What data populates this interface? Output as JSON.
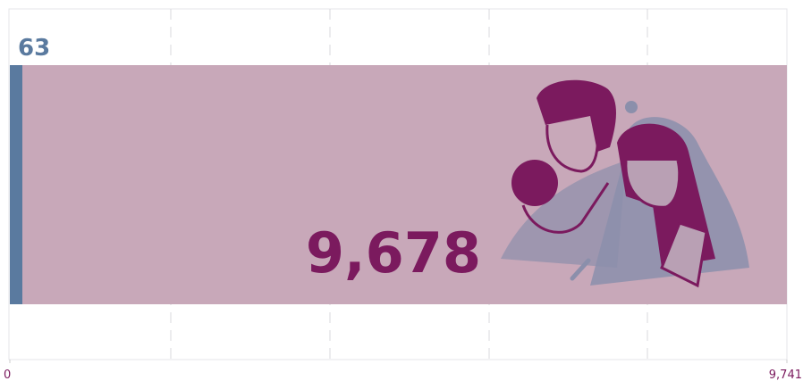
{
  "chart_data": {
    "type": "bar",
    "orientation": "horizontal",
    "stacked": true,
    "values": [
      63,
      9678
    ],
    "value_labels": [
      "63",
      "9,678"
    ],
    "colors": [
      "#5a7a9f",
      "#c8a8b9"
    ],
    "label_colors": [
      "#5a7a9f",
      "#7b1a5e"
    ],
    "xlim": [
      0,
      9741
    ],
    "xticks": [
      0,
      {
        "value": 9741,
        "label": "9,741"
      }
    ]
  }
}
